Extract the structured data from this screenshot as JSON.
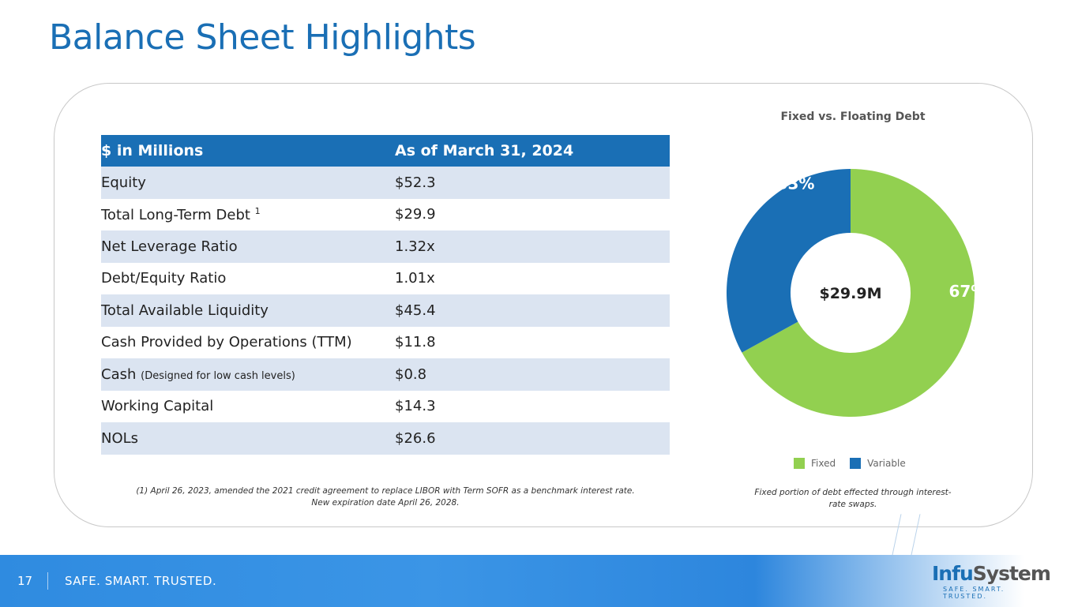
{
  "title": "Balance Sheet Highlights",
  "table": {
    "headers": [
      "$ in Millions",
      "As of March 31, 2024"
    ],
    "rows": [
      {
        "label": "Equity",
        "sup": "",
        "note": "",
        "value": "$52.3"
      },
      {
        "label": "Total Long-Term Debt",
        "sup": "1",
        "note": "",
        "value": "$29.9"
      },
      {
        "label": "Net Leverage Ratio",
        "sup": "",
        "note": "",
        "value": "1.32x"
      },
      {
        "label": "Debt/Equity Ratio",
        "sup": "",
        "note": "",
        "value": "1.01x"
      },
      {
        "label": "Total Available Liquidity",
        "sup": "",
        "note": "",
        "value": "$45.4"
      },
      {
        "label": "Cash Provided by Operations (TTM)",
        "sup": "",
        "note": "",
        "value": "$11.8"
      },
      {
        "label": "Cash",
        "sup": "",
        "note": "(Designed for low cash levels)",
        "value": "$0.8"
      },
      {
        "label": "Working Capital",
        "sup": "",
        "note": "",
        "value": "$14.3"
      },
      {
        "label": "NOLs",
        "sup": "",
        "note": "",
        "value": "$26.6"
      }
    ]
  },
  "footnote": {
    "line1": "(1) April 26, 2023, amended the 2021 credit agreement to replace LIBOR with Term SOFR as a benchmark interest rate.",
    "line2": "New expiration date April 26, 2028."
  },
  "chart_data": {
    "type": "pie",
    "title": "Fixed vs. Floating Debt",
    "center_label": "$29.9M",
    "categories": [
      "Fixed",
      "Variable"
    ],
    "values": [
      67,
      33
    ],
    "data_labels": [
      "67%",
      "33%"
    ],
    "colors": [
      "#92d050",
      "#1a6fb5"
    ],
    "donut": true,
    "legend": "bottom"
  },
  "chart_note": "Fixed portion of debt effected through interest-rate swaps.",
  "footer": {
    "page": "17",
    "tagline": "SAFE. SMART. TRUSTED.",
    "logo_main": "Infu",
    "logo_rest": "System",
    "logo_sub": "SAFE. SMART. TRUSTED."
  }
}
